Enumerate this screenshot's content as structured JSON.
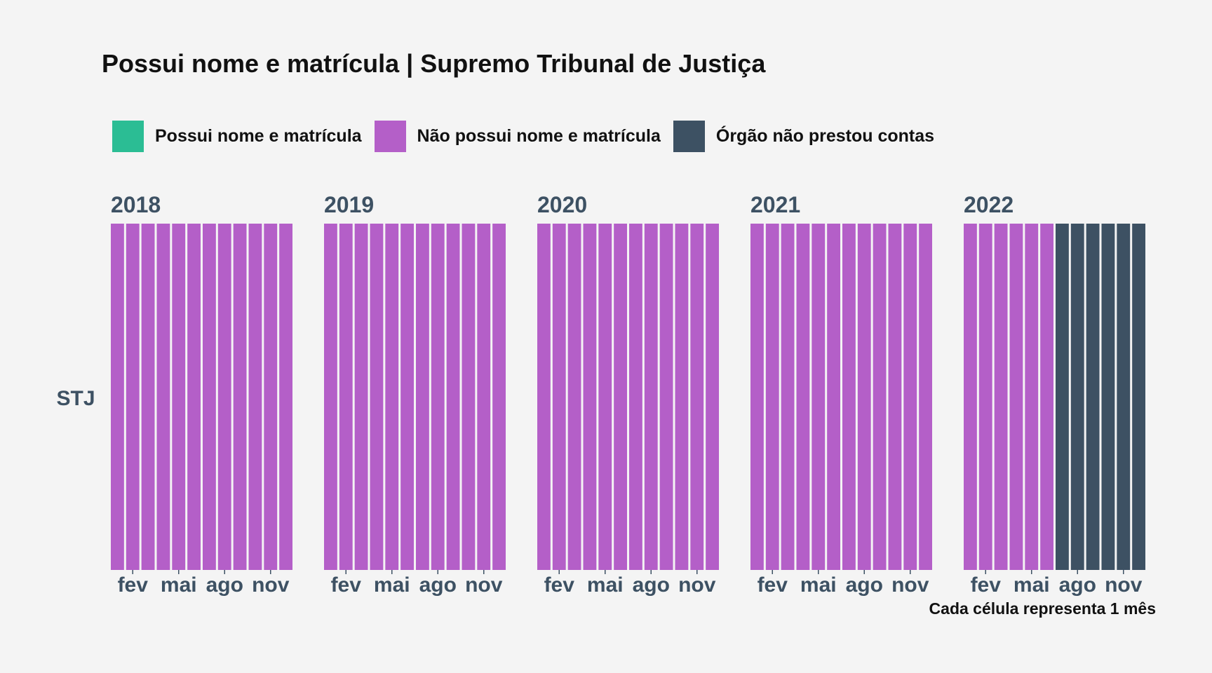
{
  "chart_data": {
    "type": "heatmap",
    "title": "Possui nome e matrícula | Supremo Tribunal de Justiça",
    "legend": [
      {
        "key": "possui",
        "label": "Possui nome e matrícula",
        "color": "#2bbd94"
      },
      {
        "key": "nao_possui",
        "label": "Não possui nome e matrícula",
        "color": "#b45fc8"
      },
      {
        "key": "nao_prestou",
        "label": "Órgão não prestou contas",
        "color": "#3d5163"
      }
    ],
    "legend_position": "top",
    "row_label": "STJ",
    "tick_labels": [
      "fev",
      "mai",
      "ago",
      "nov"
    ],
    "caption": "Cada célula representa 1 mês",
    "years": [
      {
        "year": "2018",
        "months": [
          "nao_possui",
          "nao_possui",
          "nao_possui",
          "nao_possui",
          "nao_possui",
          "nao_possui",
          "nao_possui",
          "nao_possui",
          "nao_possui",
          "nao_possui",
          "nao_possui",
          "nao_possui"
        ]
      },
      {
        "year": "2019",
        "months": [
          "nao_possui",
          "nao_possui",
          "nao_possui",
          "nao_possui",
          "nao_possui",
          "nao_possui",
          "nao_possui",
          "nao_possui",
          "nao_possui",
          "nao_possui",
          "nao_possui",
          "nao_possui"
        ]
      },
      {
        "year": "2020",
        "months": [
          "nao_possui",
          "nao_possui",
          "nao_possui",
          "nao_possui",
          "nao_possui",
          "nao_possui",
          "nao_possui",
          "nao_possui",
          "nao_possui",
          "nao_possui",
          "nao_possui",
          "nao_possui"
        ]
      },
      {
        "year": "2021",
        "months": [
          "nao_possui",
          "nao_possui",
          "nao_possui",
          "nao_possui",
          "nao_possui",
          "nao_possui",
          "nao_possui",
          "nao_possui",
          "nao_possui",
          "nao_possui",
          "nao_possui",
          "nao_possui"
        ]
      },
      {
        "year": "2022",
        "months": [
          "nao_possui",
          "nao_possui",
          "nao_possui",
          "nao_possui",
          "nao_possui",
          "nao_possui",
          "nao_prestou",
          "nao_prestou",
          "nao_prestou",
          "nao_prestou",
          "nao_prestou",
          "nao_prestou"
        ]
      }
    ]
  }
}
